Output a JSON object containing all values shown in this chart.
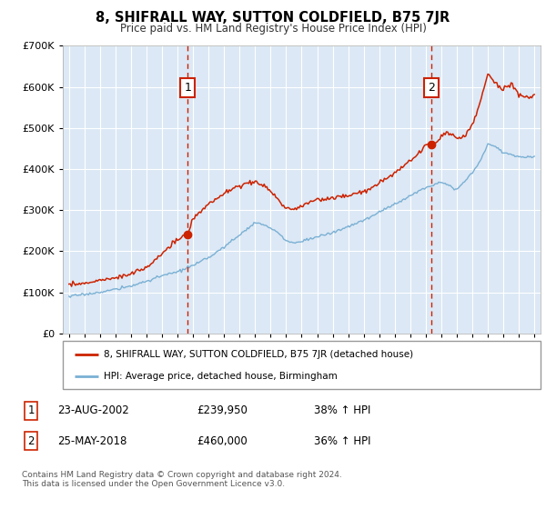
{
  "title": "8, SHIFRALL WAY, SUTTON COLDFIELD, B75 7JR",
  "subtitle": "Price paid vs. HM Land Registry's House Price Index (HPI)",
  "plot_bg_color": "#dce8f5",
  "red_line_color": "#cc2200",
  "blue_line_color": "#7ab0d4",
  "marker1_year": 2002.65,
  "marker1_price": 239950,
  "marker1_date": "23-AUG-2002",
  "marker1_hpi": "38% ↑ HPI",
  "marker2_year": 2018.38,
  "marker2_price": 460000,
  "marker2_date": "25-MAY-2018",
  "marker2_hpi": "36% ↑ HPI",
  "ylim_min": 0,
  "ylim_max": 700000,
  "legend_line1": "8, SHIFRALL WAY, SUTTON COLDFIELD, B75 7JR (detached house)",
  "legend_line2": "HPI: Average price, detached house, Birmingham",
  "footnote": "Contains HM Land Registry data © Crown copyright and database right 2024.\nThis data is licensed under the Open Government Licence v3.0."
}
